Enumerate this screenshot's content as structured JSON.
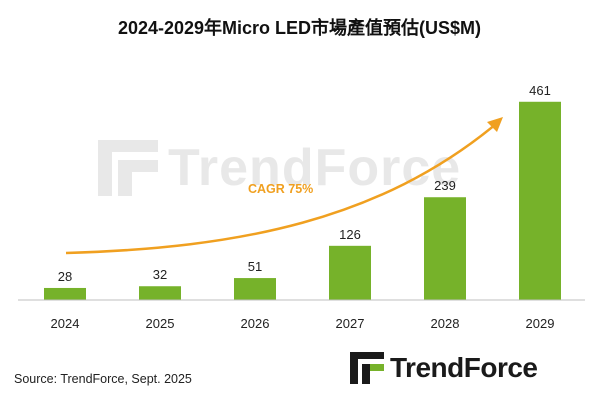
{
  "title": "2024-2029年Micro LED市場產值預估(US$M)",
  "source": "Source: TrendForce, Sept. 2025",
  "brand": "TrendForce",
  "watermark": "TrendForce",
  "colors": {
    "bar": "#76b22a",
    "trend": "#f0a020",
    "cagr_text": "#f0a020",
    "axis": "#bfbfbf"
  },
  "chart_data": {
    "type": "bar",
    "categories": [
      "2024",
      "2025",
      "2026",
      "2027",
      "2028",
      "2029"
    ],
    "values": [
      28,
      32,
      51,
      126,
      239,
      461
    ],
    "data_labels": [
      "28",
      "32",
      "51",
      "126",
      "239",
      "461"
    ],
    "title": "2024-2029年Micro LED市場產值預估(US$M)",
    "xlabel": "",
    "ylabel": "",
    "ylim": [
      0,
      500
    ],
    "grid": false,
    "annotation": "CAGR 75%"
  }
}
